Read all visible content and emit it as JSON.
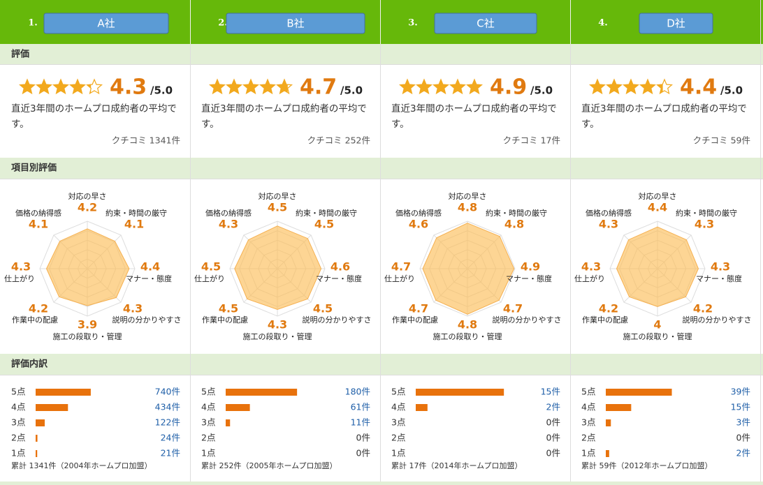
{
  "sections": [
    "評価",
    "項目別評価",
    "評価内訳"
  ],
  "radar_axes": [
    "対応の早さ",
    "約束・時間の厳守",
    "マナー・態度",
    "説明の分かりやすさ",
    "施工の段取り・管理",
    "作業中の配慮",
    "仕上がり",
    "価格の納得感"
  ],
  "score_labels": [
    "5点",
    "4点",
    "3点",
    "2点",
    "1点"
  ],
  "companies": [
    {
      "rank": "1.",
      "name": "A社",
      "rating": 4.3,
      "rating_scale": {
        "value": 5,
        "label": "/5.0"
      },
      "description": "直近3年間のホームプロ成約者の平均です。",
      "reviews": "クチコミ 1341件",
      "radar": [
        4.2,
        4.1,
        4.4,
        4.3,
        3.9,
        4.2,
        4.3,
        4.1
      ],
      "counts": [
        740,
        434,
        122,
        24,
        21
      ],
      "count_labels": [
        "740件",
        "434件",
        "122件",
        "24件",
        "21件"
      ],
      "footnote": "累計 1341件（2004年ホームプロ加盟）"
    },
    {
      "rank": "2.",
      "name": "B社",
      "rating": 4.7,
      "rating_scale": {
        "value": 5,
        "label": "/5.0"
      },
      "description": "直近3年間のホームプロ成約者の平均です。",
      "reviews": "クチコミ 252件",
      "radar": [
        4.5,
        4.5,
        4.6,
        4.5,
        4.3,
        4.5,
        4.5,
        4.3
      ],
      "counts": [
        180,
        61,
        11,
        0,
        0
      ],
      "count_labels": [
        "180件",
        "61件",
        "11件",
        "0件",
        "0件"
      ],
      "footnote": "累計 252件（2005年ホームプロ加盟）"
    },
    {
      "rank": "3.",
      "name": "C社",
      "rating": 4.9,
      "rating_scale": {
        "value": 5,
        "label": "/5.0"
      },
      "description": "直近3年間のホームプロ成約者の平均です。",
      "reviews": "クチコミ 17件",
      "radar": [
        4.8,
        4.8,
        4.9,
        4.7,
        4.8,
        4.7,
        4.7,
        4.6
      ],
      "counts": [
        15,
        2,
        0,
        0,
        0
      ],
      "count_labels": [
        "15件",
        "2件",
        "0件",
        "0件",
        "0件"
      ],
      "footnote": "累計 17件（2014年ホームプロ加盟）"
    },
    {
      "rank": "4.",
      "name": "D社",
      "rating": 4.4,
      "rating_scale": {
        "value": 5,
        "label": "/5.0"
      },
      "description": "直近3年間のホームプロ成約者の平均です。",
      "reviews": "クチコミ 59件",
      "radar": [
        4.4,
        4.3,
        4.3,
        4.2,
        4,
        4.2,
        4.3,
        4.3
      ],
      "counts": [
        39,
        15,
        3,
        0,
        2
      ],
      "count_labels": [
        "39件",
        "15件",
        "3件",
        "0件",
        "2件"
      ],
      "footnote": "累計 59件（2012年ホームプロ加盟）"
    }
  ]
}
